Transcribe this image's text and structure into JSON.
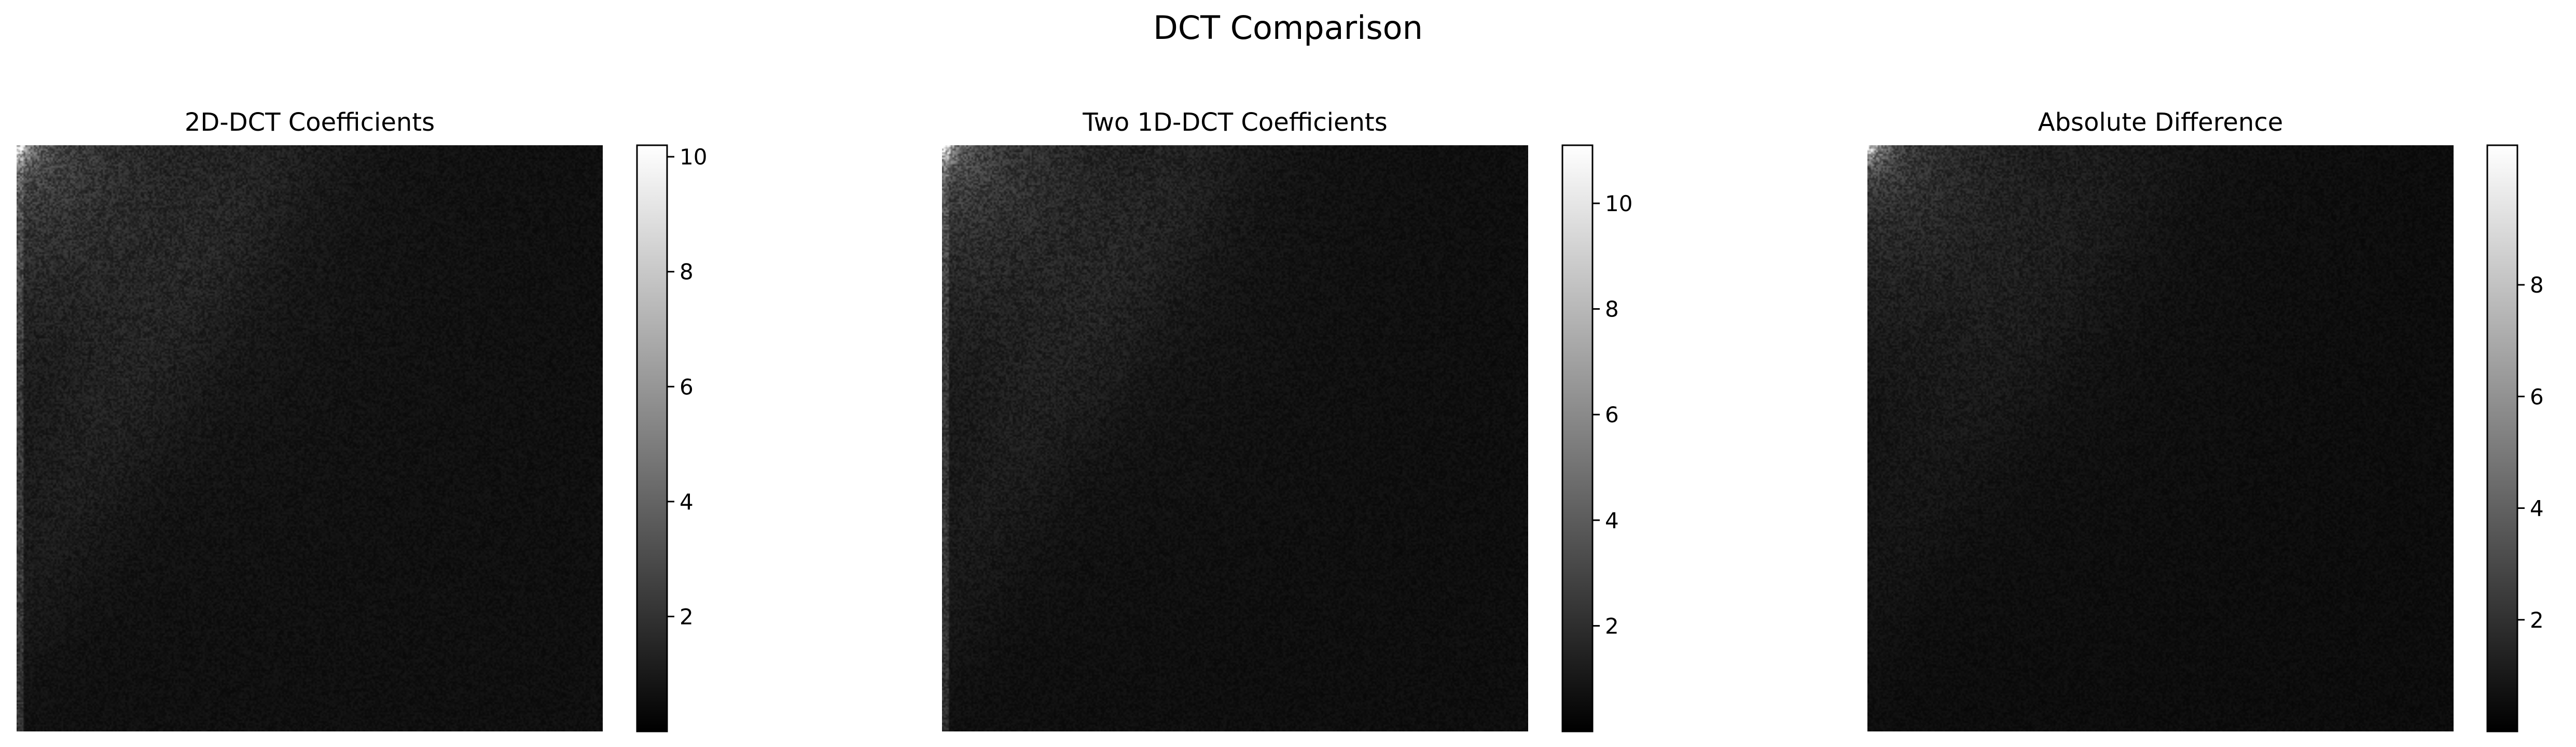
{
  "figure": {
    "title": "DCT Comparison"
  },
  "chart_data": [
    {
      "type": "heatmap",
      "title": "2D-DCT Coefficients",
      "colormap": "gray",
      "axes_visible": false,
      "colorbar": {
        "min": 0,
        "max": 10.2,
        "ticks": [
          2,
          4,
          6,
          8,
          10
        ]
      },
      "description_of_values": "log-magnitude DCT coefficients, brightest near the top-left (low frequencies) fading to near-black at high frequencies",
      "value_profile": {
        "dc_peak": 10.2,
        "low_freq_level": 3.2,
        "high_freq_level": 0.6
      }
    },
    {
      "type": "heatmap",
      "title": "Two 1D-DCT Coefficients",
      "colormap": "gray",
      "axes_visible": false,
      "colorbar": {
        "min": 0,
        "max": 11.1,
        "ticks": [
          2,
          4,
          6,
          8,
          10
        ]
      },
      "description_of_values": "log-magnitude of separable (row then column) DCT coefficients, same structure as the 2D-DCT",
      "value_profile": {
        "dc_peak": 11.1,
        "low_freq_level": 3.4,
        "high_freq_level": 0.6
      }
    },
    {
      "type": "heatmap",
      "title": "Absolute Difference",
      "colormap": "gray",
      "axes_visible": false,
      "colorbar": {
        "min": 0,
        "max": 10.5,
        "ticks": [
          2,
          4,
          6,
          8
        ]
      },
      "description_of_values": "absolute difference of the two coefficient maps, mostly low values with a faint texture",
      "value_profile": {
        "dc_peak": 10.5,
        "low_freq_level": 2.8,
        "high_freq_level": 0.5
      }
    }
  ],
  "colors": {
    "background": "#ffffff",
    "axis": "#000000",
    "colormap_low": "#000000",
    "colormap_high": "#ffffff"
  }
}
